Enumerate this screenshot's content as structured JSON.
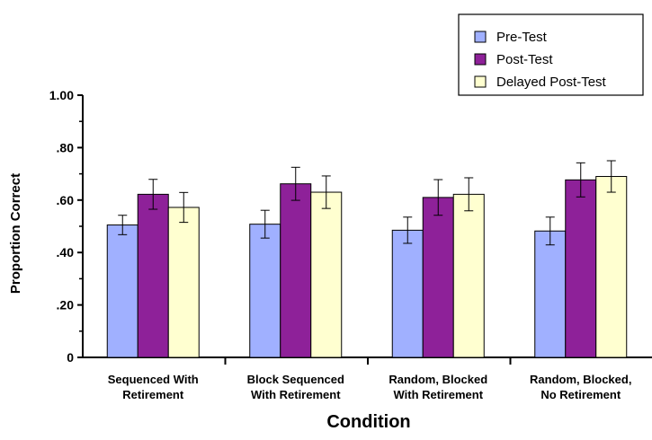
{
  "chart_data": {
    "type": "bar",
    "xlabel": "Condition",
    "ylabel": "Proportion Correct",
    "ylim": [
      0,
      1.0
    ],
    "yticks": [
      0,
      0.2,
      0.4,
      0.6,
      0.8,
      1.0
    ],
    "ytick_labels": [
      "0",
      ".20",
      ".40",
      ".60",
      ".80",
      "1.00"
    ],
    "categories": [
      [
        "Sequenced With",
        "Retirement"
      ],
      [
        "Block Sequenced",
        "With Retirement"
      ],
      [
        "Random, Blocked",
        "With Retirement"
      ],
      [
        "Random, Blocked,",
        "No Retirement"
      ]
    ],
    "series": [
      {
        "name": "Pre-Test",
        "color": "#a0b0ff",
        "values": [
          0.505,
          0.508,
          0.485,
          0.482
        ],
        "errors": [
          0.037,
          0.053,
          0.05,
          0.053
        ]
      },
      {
        "name": "Post-Test",
        "color": "#8e2199",
        "values": [
          0.622,
          0.662,
          0.61,
          0.677
        ],
        "errors": [
          0.057,
          0.063,
          0.068,
          0.065
        ]
      },
      {
        "name": "Delayed Post-Test",
        "color": "#ffffd0",
        "values": [
          0.572,
          0.63,
          0.622,
          0.69
        ],
        "errors": [
          0.057,
          0.062,
          0.063,
          0.06
        ]
      }
    ],
    "legend_position": "top-right",
    "grid": false
  }
}
